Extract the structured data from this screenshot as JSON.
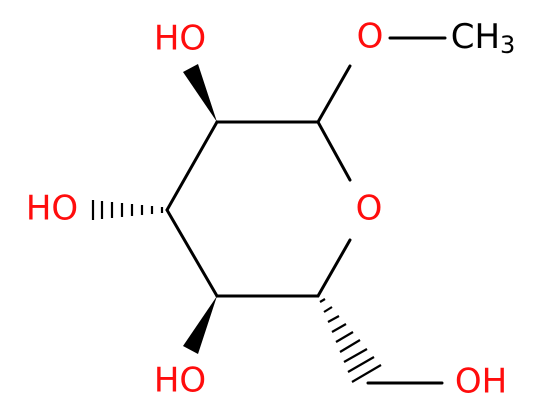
{
  "atoms": [
    {
      "label": "HO"
    },
    {
      "label": "O"
    },
    {
      "label": "CH",
      "subscript": "3"
    },
    {
      "label": "HO"
    },
    {
      "label": "O"
    },
    {
      "label": "HO"
    },
    {
      "label": "OH"
    }
  ]
}
